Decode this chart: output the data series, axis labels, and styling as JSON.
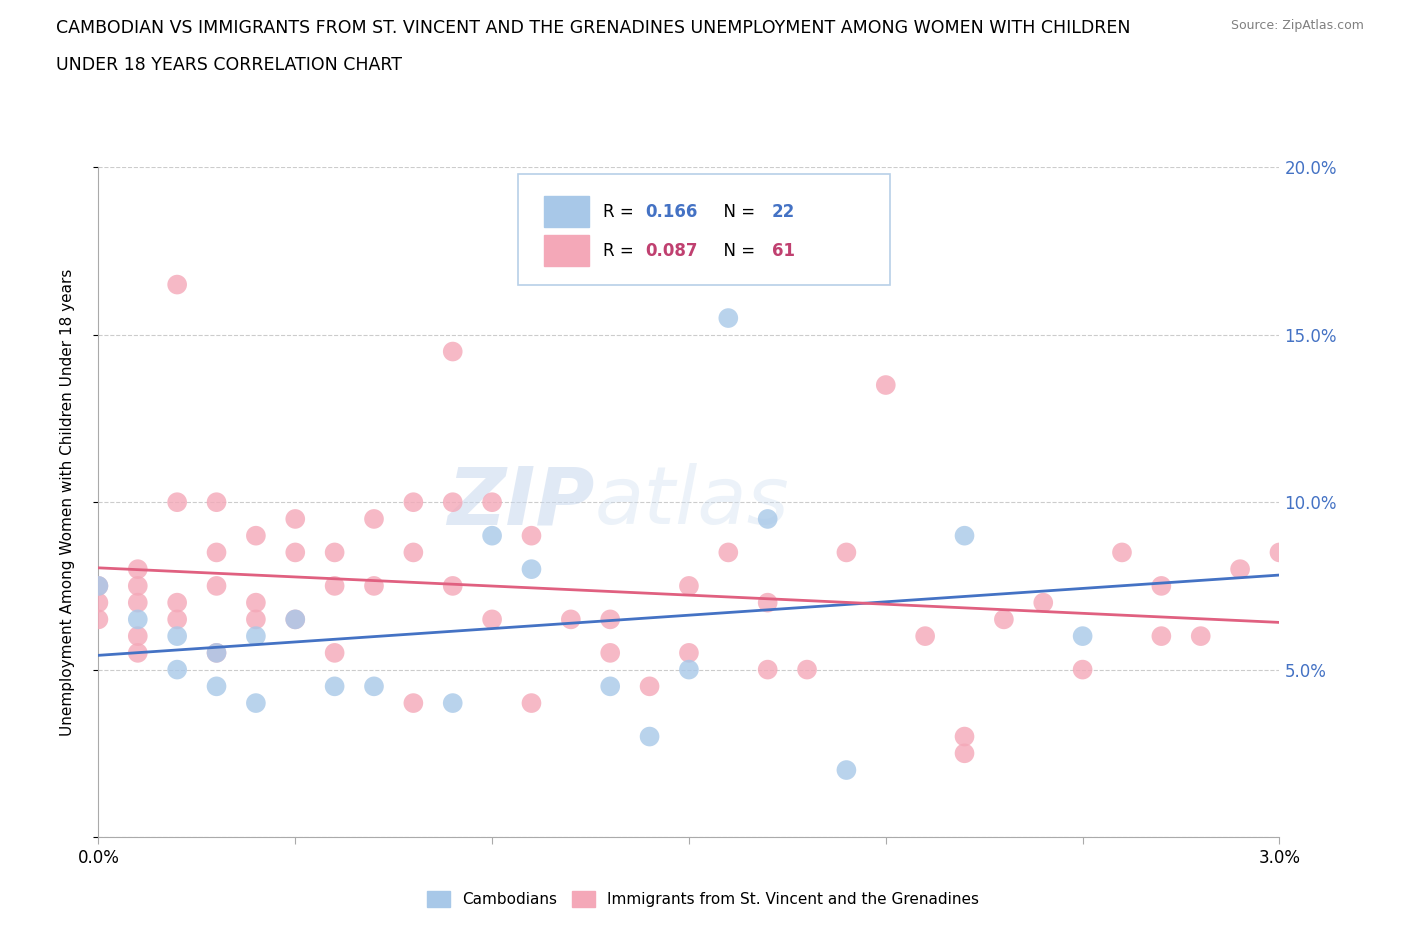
{
  "title_line1": "CAMBODIAN VS IMMIGRANTS FROM ST. VINCENT AND THE GRENADINES UNEMPLOYMENT AMONG WOMEN WITH CHILDREN",
  "title_line2": "UNDER 18 YEARS CORRELATION CHART",
  "source": "Source: ZipAtlas.com",
  "ylabel": "Unemployment Among Women with Children Under 18 years",
  "xmin": 0.0,
  "xmax": 0.03,
  "ymin": 0.0,
  "ymax": 0.2,
  "xticks": [
    0.0,
    0.005,
    0.01,
    0.015,
    0.02,
    0.025,
    0.03
  ],
  "yticks": [
    0.0,
    0.05,
    0.1,
    0.15,
    0.2
  ],
  "cambodian_R": 0.166,
  "cambodian_N": 22,
  "svg_R": 0.087,
  "svg_N": 61,
  "cambodian_color": "#a8c8e8",
  "svgrenada_color": "#f4a8b8",
  "cambodian_line_color": "#4472c4",
  "svgrenada_line_color": "#e06080",
  "legend_text_blue": "#4472c4",
  "legend_text_pink": "#c04070",
  "cambodian_scatter_x": [
    0.0,
    0.001,
    0.002,
    0.002,
    0.003,
    0.003,
    0.004,
    0.004,
    0.005,
    0.006,
    0.007,
    0.009,
    0.01,
    0.011,
    0.013,
    0.014,
    0.015,
    0.016,
    0.017,
    0.019,
    0.022,
    0.025
  ],
  "cambodian_scatter_y": [
    0.075,
    0.065,
    0.06,
    0.05,
    0.055,
    0.045,
    0.06,
    0.04,
    0.065,
    0.045,
    0.045,
    0.04,
    0.09,
    0.08,
    0.045,
    0.03,
    0.05,
    0.155,
    0.095,
    0.02,
    0.09,
    0.06
  ],
  "svgrenada_scatter_x": [
    0.0,
    0.0,
    0.0,
    0.001,
    0.001,
    0.001,
    0.001,
    0.001,
    0.002,
    0.002,
    0.002,
    0.002,
    0.003,
    0.003,
    0.003,
    0.003,
    0.004,
    0.004,
    0.004,
    0.005,
    0.005,
    0.005,
    0.006,
    0.006,
    0.006,
    0.007,
    0.007,
    0.008,
    0.008,
    0.008,
    0.009,
    0.009,
    0.009,
    0.01,
    0.01,
    0.011,
    0.011,
    0.012,
    0.013,
    0.013,
    0.014,
    0.015,
    0.015,
    0.016,
    0.017,
    0.017,
    0.018,
    0.019,
    0.02,
    0.021,
    0.022,
    0.022,
    0.023,
    0.024,
    0.025,
    0.026,
    0.027,
    0.027,
    0.028,
    0.029,
    0.03
  ],
  "svgrenada_scatter_y": [
    0.075,
    0.07,
    0.065,
    0.08,
    0.075,
    0.07,
    0.06,
    0.055,
    0.165,
    0.1,
    0.07,
    0.065,
    0.1,
    0.085,
    0.075,
    0.055,
    0.09,
    0.07,
    0.065,
    0.095,
    0.085,
    0.065,
    0.085,
    0.075,
    0.055,
    0.095,
    0.075,
    0.1,
    0.085,
    0.04,
    0.145,
    0.1,
    0.075,
    0.1,
    0.065,
    0.09,
    0.04,
    0.065,
    0.065,
    0.055,
    0.045,
    0.075,
    0.055,
    0.085,
    0.07,
    0.05,
    0.05,
    0.085,
    0.135,
    0.06,
    0.03,
    0.025,
    0.065,
    0.07,
    0.05,
    0.085,
    0.075,
    0.06,
    0.06,
    0.08,
    0.085
  ]
}
